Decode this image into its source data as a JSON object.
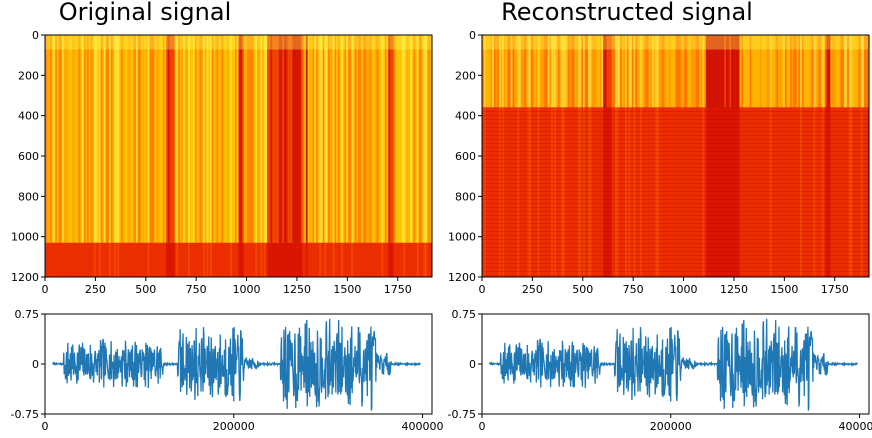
{
  "chart_data": [
    {
      "type": "heatmap",
      "title": "Original signal",
      "xticks": [
        0,
        250,
        500,
        750,
        1000,
        1250,
        1500,
        1750
      ],
      "yticks": [
        0,
        200,
        400,
        600,
        800,
        1000,
        1200
      ],
      "xlim": [
        0,
        1920
      ],
      "ylim": [
        1200,
        0
      ],
      "colormap": [
        "#cc0000",
        "#ee3300",
        "#ff6600",
        "#ffa500",
        "#ffd200",
        "#ffff55"
      ],
      "dark_columns": [
        [
          600,
          640
        ],
        [
          960,
          980
        ],
        [
          1100,
          1270
        ],
        [
          1290,
          1300
        ],
        [
          1700,
          1720
        ]
      ],
      "band_cut_row": 1030
    },
    {
      "type": "line",
      "title": "",
      "xticks": [
        0,
        200000,
        400000
      ],
      "yticks": [
        "0.75",
        "0",
        "-0.75"
      ],
      "xlim": [
        0,
        410000
      ],
      "ylim": [
        -0.75,
        0.75
      ],
      "color": "#1f77b4"
    },
    {
      "type": "heatmap",
      "title": "Reconstructed signal",
      "xticks": [
        0,
        250,
        500,
        750,
        1000,
        1250,
        1500,
        1750
      ],
      "yticks": [
        0,
        200,
        400,
        600,
        800,
        1000,
        1200
      ],
      "xlim": [
        0,
        1920
      ],
      "ylim": [
        1200,
        0
      ],
      "colormap": [
        "#cc0000",
        "#ee3300",
        "#ff6600",
        "#ffa500",
        "#ffd200",
        "#ffff55"
      ],
      "dark_columns": [
        [
          600,
          640
        ],
        [
          1110,
          1270
        ],
        [
          1700,
          1720
        ]
      ],
      "band_cut_row": 360
    },
    {
      "type": "line",
      "title": "",
      "xticks": [
        0,
        200000,
        400000
      ],
      "yticks": [
        "0.75",
        "0",
        "-0.75"
      ],
      "xlim": [
        0,
        410000
      ],
      "ylim": [
        -0.75,
        0.75
      ],
      "color": "#1f77b4"
    }
  ]
}
